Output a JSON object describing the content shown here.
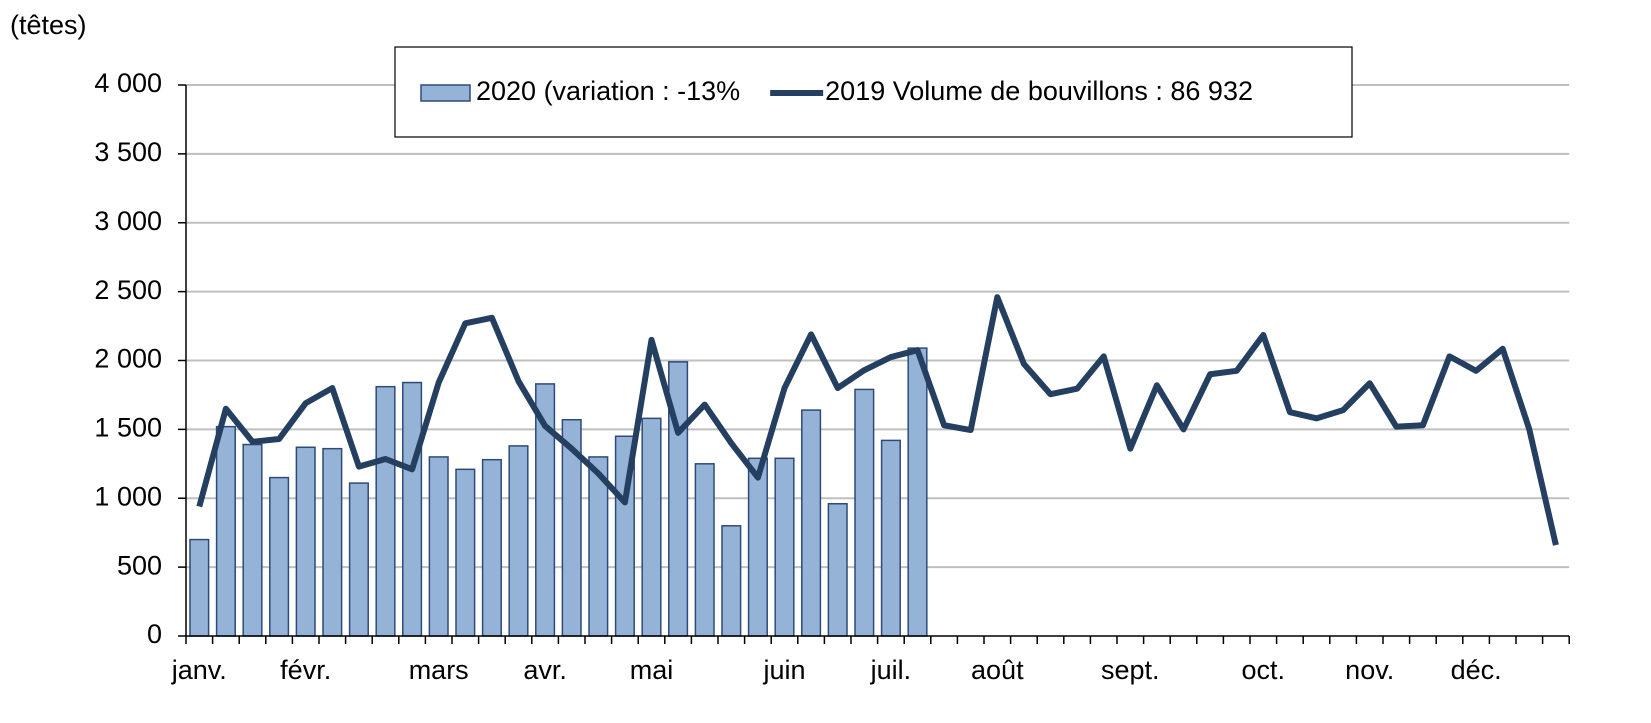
{
  "chart_data": {
    "type": "bar_line",
    "y_label": "(têtes)",
    "categories": [
      "janv.",
      null,
      null,
      null,
      "févr.",
      null,
      null,
      null,
      null,
      "mars",
      null,
      null,
      null,
      "avr.",
      null,
      null,
      null,
      "mai",
      null,
      null,
      null,
      null,
      "juin",
      null,
      null,
      null,
      "juil.",
      null,
      null,
      null,
      "août",
      null,
      null,
      null,
      null,
      "sept.",
      null,
      null,
      null,
      null,
      "oct.",
      null,
      null,
      null,
      "nov.",
      null,
      null,
      null,
      "déc.",
      null,
      null,
      null
    ],
    "series": [
      {
        "name": "2020 (variation : -13%",
        "type": "bar",
        "color": "#95b3d7",
        "values": [
          700,
          1520,
          1390,
          1150,
          1370,
          1360,
          1110,
          1810,
          1840,
          1300,
          1210,
          1280,
          1380,
          1830,
          1570,
          1300,
          1450,
          1580,
          1990,
          1250,
          800,
          1290,
          1290,
          1640,
          960,
          1790,
          1420,
          2090,
          null,
          null,
          null,
          null,
          null,
          null,
          null,
          null,
          null,
          null,
          null,
          null,
          null,
          null,
          null,
          null,
          null,
          null,
          null,
          null,
          null,
          null,
          null,
          null
        ]
      },
      {
        "name": "2019 Volume de bouvillons : 86 932",
        "type": "line",
        "color": "#243f60",
        "values": [
          940,
          1650,
          1410,
          1430,
          1690,
          1800,
          1230,
          1285,
          1210,
          1840,
          2270,
          2310,
          1850,
          1525,
          1360,
          1180,
          970,
          2150,
          1475,
          1680,
          1400,
          1150,
          1800,
          2190,
          1800,
          1930,
          2025,
          2075,
          1530,
          1495,
          2460,
          1975,
          1755,
          1795,
          2030,
          1360,
          1820,
          1500,
          1900,
          1925,
          2185,
          1625,
          1580,
          1640,
          1835,
          1520,
          1530,
          2030,
          1925,
          2085,
          1500,
          660
        ]
      }
    ],
    "ylim": [
      0,
      4000
    ],
    "yticks": [
      0,
      500,
      {
        "value": 1000,
        "label": "1 000"
      },
      {
        "value": 1500,
        "label": "1 500"
      },
      {
        "value": 2000,
        "label": "2 000"
      },
      {
        "value": 2500,
        "label": "2 500"
      },
      {
        "value": 3000,
        "label": "3 000"
      },
      {
        "value": 3500,
        "label": "3 500"
      },
      {
        "value": 4000,
        "label": "4 000"
      }
    ],
    "grid": true,
    "legend": "top"
  }
}
